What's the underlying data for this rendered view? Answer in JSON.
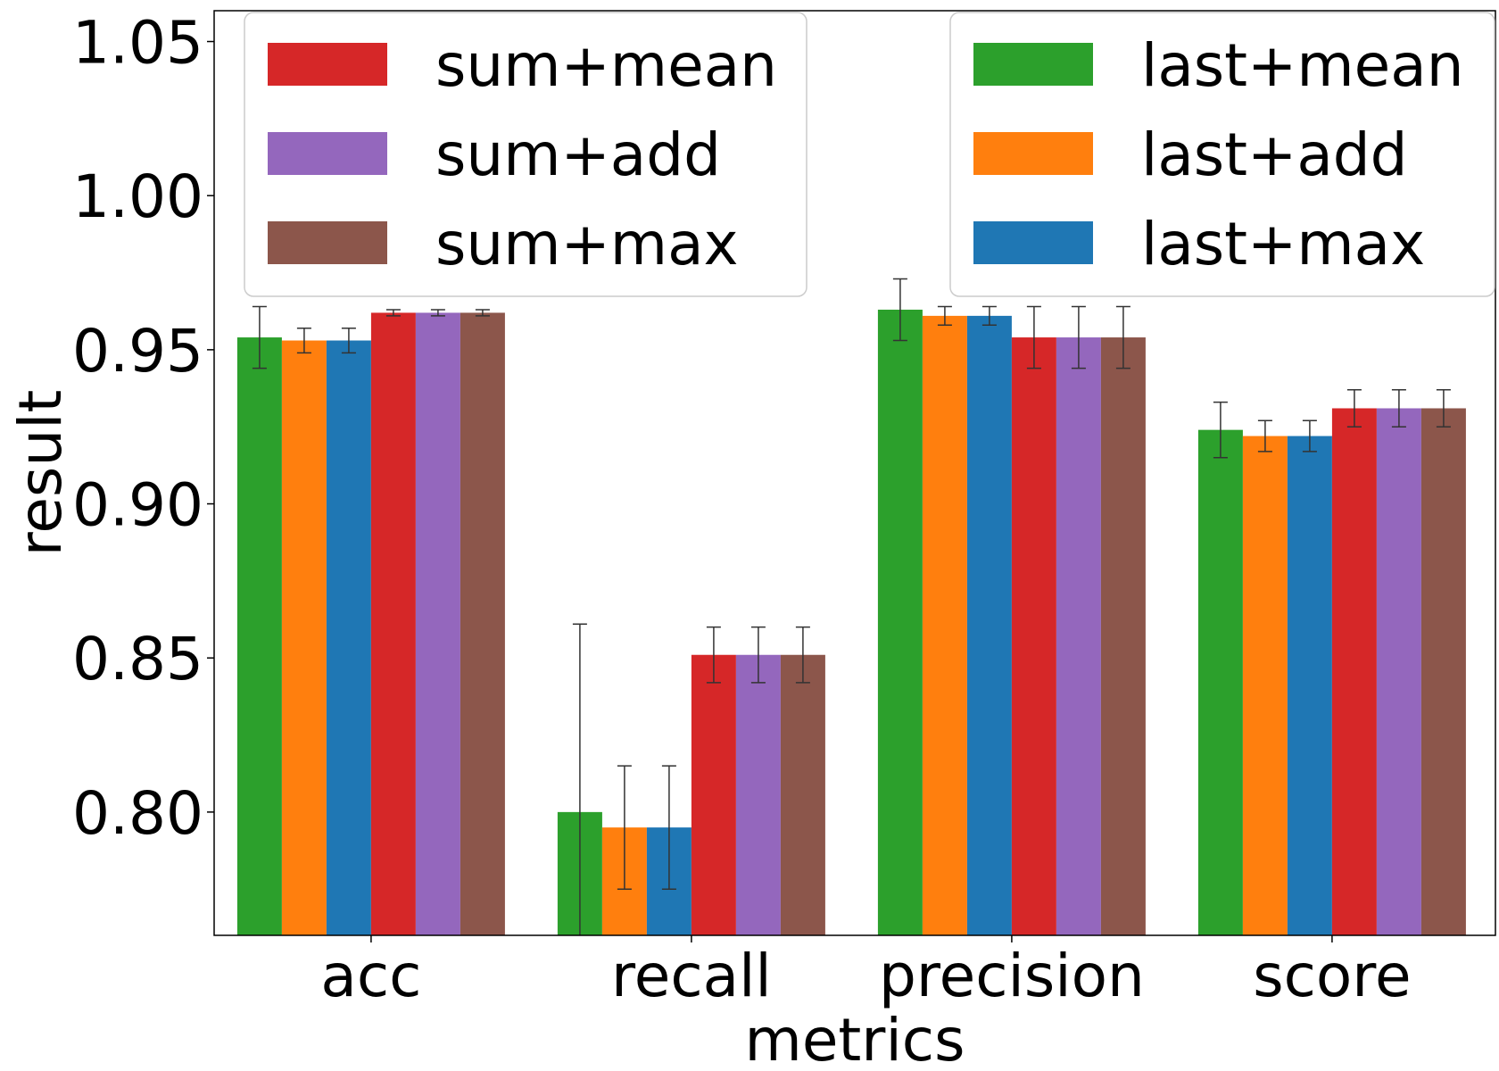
{
  "chart_data": {
    "type": "bar",
    "xlabel": "metrics",
    "ylabel": "result",
    "categories": [
      "acc",
      "recall",
      "precision",
      "score"
    ],
    "ylim": [
      0.76,
      1.06
    ],
    "yticks": [
      "0.80",
      "0.85",
      "0.90",
      "0.95",
      "1.00",
      "1.05"
    ],
    "grid": false,
    "series": [
      {
        "name": "last+mean",
        "color": "#2ca02c",
        "values": [
          0.954,
          0.8,
          0.963,
          0.924
        ],
        "errors": [
          0.01,
          0.061,
          0.01,
          0.009
        ]
      },
      {
        "name": "last+add",
        "color": "#ff7f0e",
        "values": [
          0.953,
          0.795,
          0.961,
          0.922
        ],
        "errors": [
          0.004,
          0.02,
          0.003,
          0.005
        ]
      },
      {
        "name": "last+max",
        "color": "#1f77b4",
        "values": [
          0.953,
          0.795,
          0.961,
          0.922
        ],
        "errors": [
          0.004,
          0.02,
          0.003,
          0.005
        ]
      },
      {
        "name": "sum+mean",
        "color": "#d62728",
        "values": [
          0.962,
          0.851,
          0.954,
          0.931
        ],
        "errors": [
          0.001,
          0.009,
          0.01,
          0.006
        ]
      },
      {
        "name": "sum+add",
        "color": "#9467bd",
        "values": [
          0.962,
          0.851,
          0.954,
          0.931
        ],
        "errors": [
          0.001,
          0.009,
          0.01,
          0.006
        ]
      },
      {
        "name": "sum+max",
        "color": "#8c564b",
        "values": [
          0.962,
          0.851,
          0.954,
          0.931
        ],
        "errors": [
          0.001,
          0.009,
          0.01,
          0.006
        ]
      }
    ],
    "legends": [
      {
        "placement": "upper-left",
        "entries": [
          "sum+mean",
          "sum+add",
          "sum+max"
        ]
      },
      {
        "placement": "upper-right",
        "entries": [
          "last+mean",
          "last+add",
          "last+max"
        ]
      }
    ]
  }
}
